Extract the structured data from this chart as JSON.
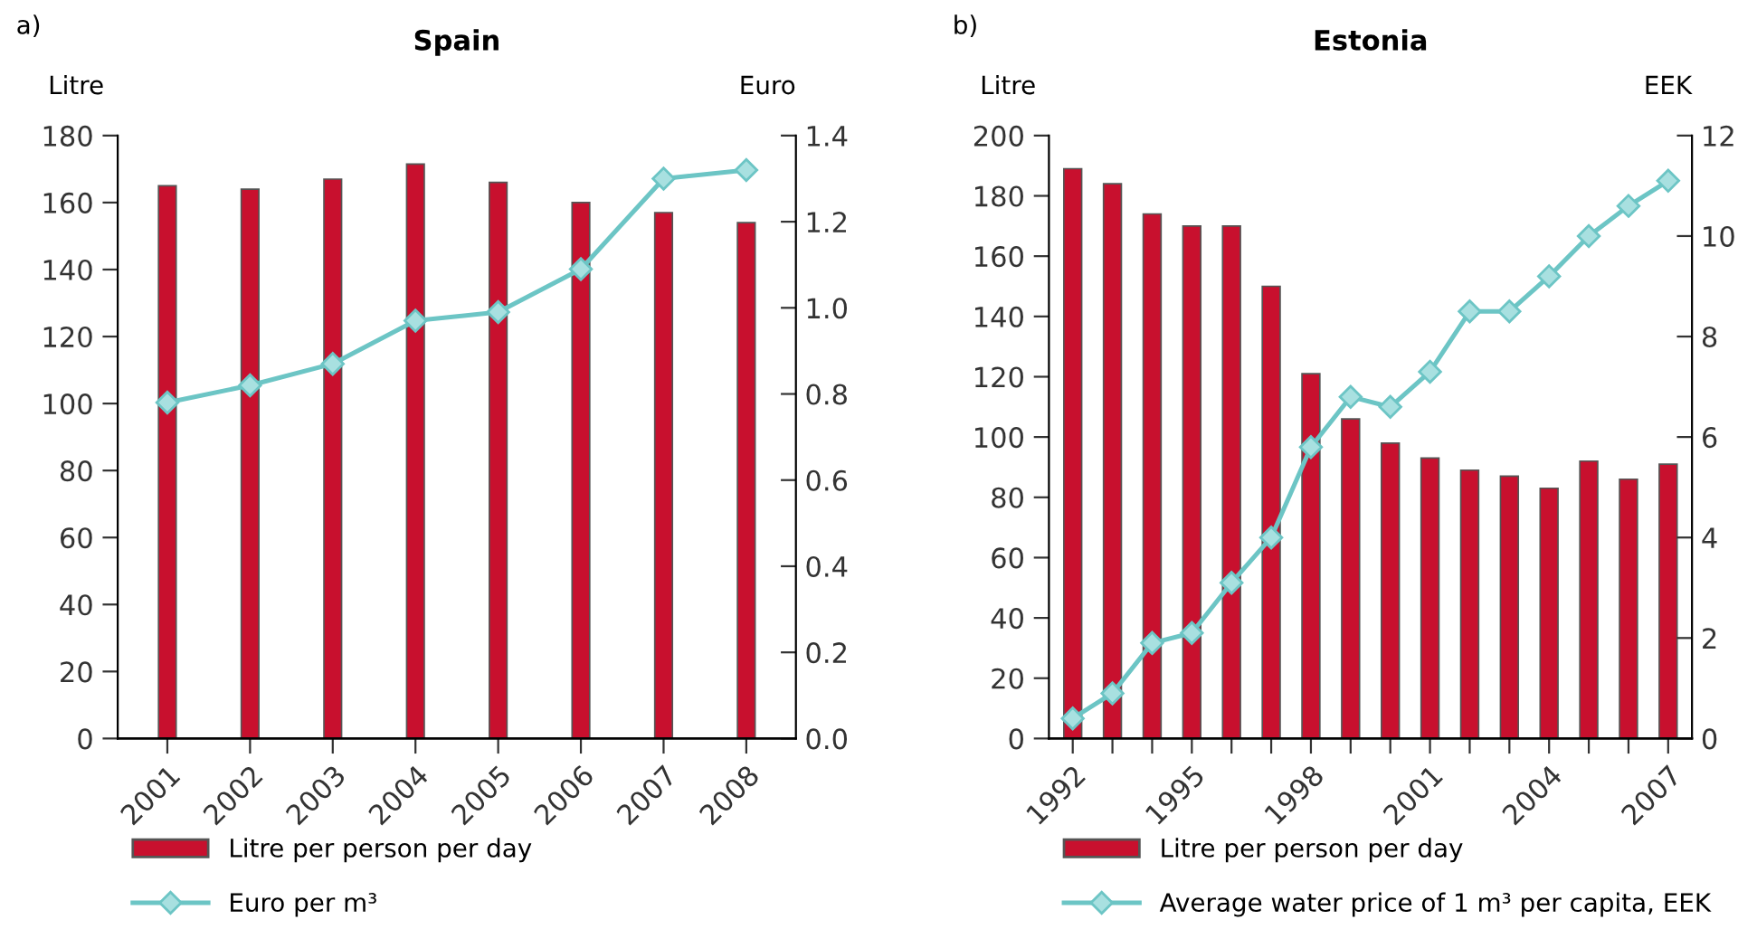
{
  "chart_data": [
    {
      "type": "bar",
      "title": "Spain",
      "ylabel": "Litre",
      "y2label": "Euro",
      "annotations": [
        "a)"
      ],
      "categories": [
        "2001",
        "2002",
        "2003",
        "2004",
        "2005",
        "2006",
        "2007",
        "2008"
      ],
      "series": [
        {
          "name": "Litre per person per day",
          "color": "#c8102e",
          "values": [
            165,
            164,
            167,
            171.5,
            166,
            160,
            157,
            154
          ]
        },
        {
          "name": "Euro per m³",
          "type": "line",
          "axis": "y2",
          "color": "#6cc5c5",
          "marker": "diamond",
          "values": [
            0.78,
            0.82,
            0.87,
            0.97,
            0.99,
            1.09,
            1.3,
            1.32
          ]
        }
      ],
      "ylim": [
        0,
        180
      ],
      "yticks": [
        0,
        20,
        40,
        60,
        80,
        100,
        120,
        140,
        160,
        180
      ],
      "y2lim": [
        0,
        1.4
      ],
      "y2ticks": [
        {
          "value": 0,
          "label": "0.0"
        },
        {
          "value": 0.2,
          "label": "0.2"
        },
        {
          "value": 0.4,
          "label": "0.4"
        },
        {
          "value": 0.6,
          "label": "0.6"
        },
        {
          "value": 0.8,
          "label": "0.8"
        },
        {
          "value": 1.0,
          "label": "1.0"
        },
        {
          "value": 1.2,
          "label": "1.2"
        },
        {
          "value": 1.4,
          "label": "1.4"
        }
      ],
      "legend": "bottom",
      "grid": false
    },
    {
      "type": "bar",
      "title": "Estonia",
      "ylabel": "Litre",
      "y2label": "EEK",
      "annotations": [
        "b)"
      ],
      "categories": [
        "1992",
        null,
        null,
        "1995",
        null,
        null,
        "1998",
        null,
        null,
        "2001",
        null,
        null,
        "2004",
        null,
        null,
        "2007"
      ],
      "series": [
        {
          "name": "Litre per person per day",
          "color": "#c8102e",
          "values": [
            189,
            184,
            174,
            170,
            170,
            150,
            121,
            106,
            98,
            93,
            89,
            87,
            83,
            92,
            86,
            91
          ]
        },
        {
          "name": "Average water price of 1 m³ per capita, EEK",
          "type": "line",
          "axis": "y2",
          "color": "#6cc5c5",
          "marker": "diamond",
          "values": [
            0.4,
            0.9,
            1.9,
            2.1,
            3.1,
            4.0,
            5.8,
            6.8,
            6.6,
            7.3,
            8.5,
            8.5,
            9.2,
            10.0,
            10.6,
            11.1
          ]
        }
      ],
      "ylim": [
        0,
        200
      ],
      "yticks": [
        0,
        20,
        40,
        60,
        80,
        100,
        120,
        140,
        160,
        180,
        200
      ],
      "y2lim": [
        0,
        12
      ],
      "y2ticks": [
        0,
        2,
        4,
        6,
        8,
        10,
        12
      ],
      "legend": "bottom",
      "grid": false
    }
  ]
}
